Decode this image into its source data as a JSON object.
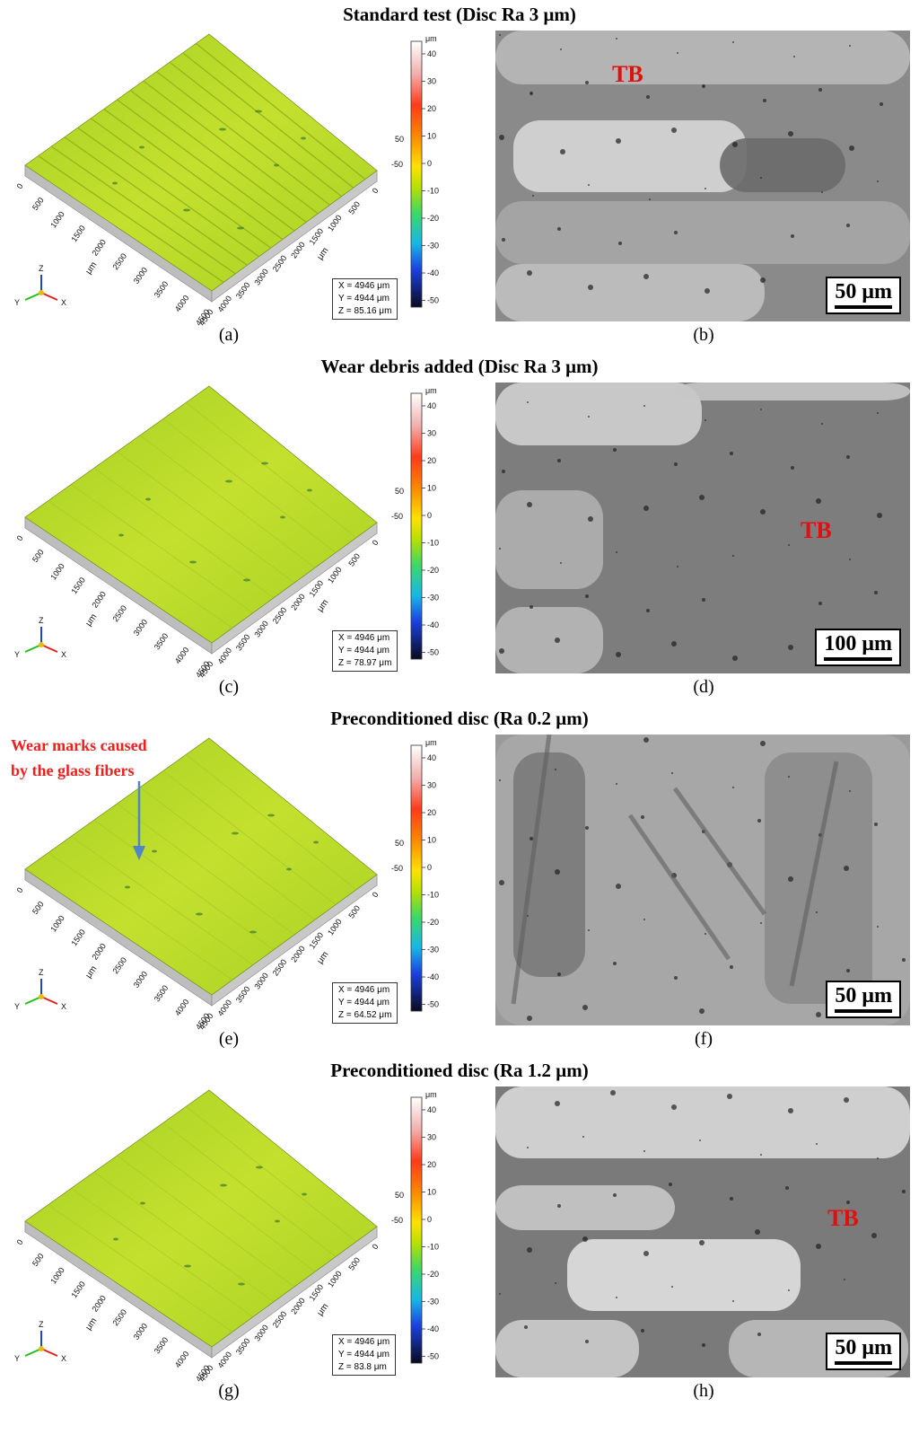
{
  "rows": [
    {
      "title": "Standard test (Disc Ra 3 μm)",
      "left_caption": "(a)",
      "right_caption": "(b)",
      "info": {
        "x": "X = 4946 μm",
        "y": "Y = 4944 μm",
        "z": "Z = 85.16 μm"
      },
      "scale_bar": "50 μm",
      "tb_label": "TB"
    },
    {
      "title": "Wear debris added (Disc Ra 3 μm)",
      "left_caption": "(c)",
      "right_caption": "(d)",
      "info": {
        "x": "X = 4946 μm",
        "y": "Y = 4944 μm",
        "z": "Z = 78.97 μm"
      },
      "scale_bar": "100 μm",
      "tb_label": "TB"
    },
    {
      "title": "Preconditioned disc (Ra 0.2 μm)",
      "left_caption": "(e)",
      "right_caption": "(f)",
      "info": {
        "x": "X = 4946 μm",
        "y": "Y = 4944 μm",
        "z": "Z = 64.52 μm"
      },
      "scale_bar": "50 μm",
      "annotation": {
        "line1": "Wear marks caused",
        "line2": "by the glass fibers"
      }
    },
    {
      "title": "Preconditioned disc (Ra 1.2 μm)",
      "left_caption": "(g)",
      "right_caption": "(h)",
      "info": {
        "x": "X = 4946 μm",
        "y": "Y = 4944 μm",
        "z": "Z = 83.8 μm"
      },
      "scale_bar": "50 μm",
      "tb_label": "TB"
    }
  ],
  "colorbar": {
    "unit": "μm",
    "ticks": [
      "40",
      "30",
      "20",
      "10",
      "0",
      "-10",
      "-20",
      "-30",
      "-40",
      "-50"
    ]
  },
  "z_axis_labels": {
    "top": "50",
    "bottom": "-50"
  },
  "left_axis_ticks": [
    "0",
    "500",
    "1000",
    "1500",
    "2000",
    "2500",
    "3000",
    "3500",
    "4000",
    "4500"
  ],
  "right_axis_ticks": [
    "4500",
    "4000",
    "3500",
    "3000",
    "2500",
    "2000",
    "1500",
    "1000",
    "500",
    "0"
  ],
  "axis_unit": "μm",
  "triad": {
    "x": "X",
    "y": "Y",
    "z": "Z"
  },
  "colors": {
    "surface": "#b8d82a",
    "label_red": "#e01010",
    "arrow": "#4f86c6"
  }
}
